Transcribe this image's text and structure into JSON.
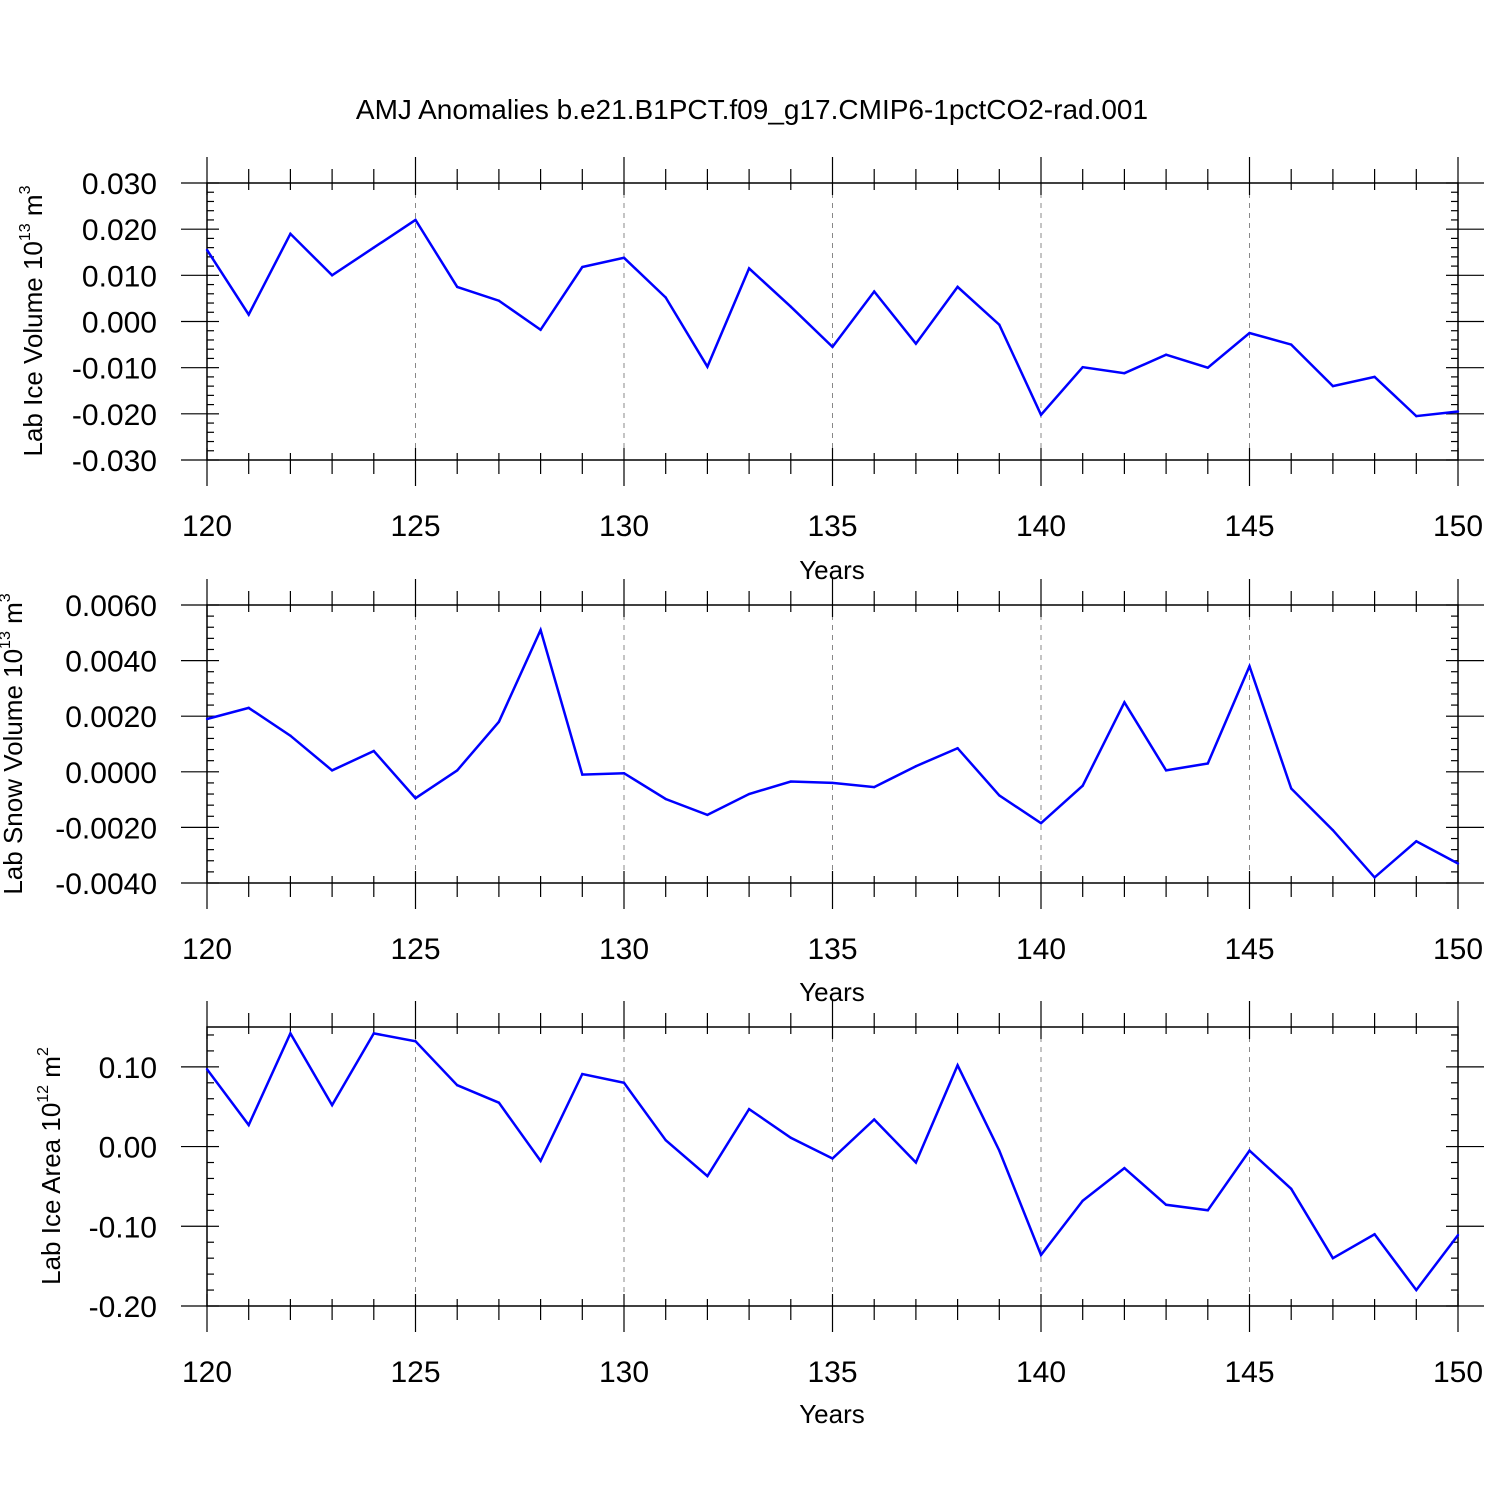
{
  "title": "AMJ Anomalies b.e21.B1PCT.f09_g17.CMIP6-1pctCO2-rad.001",
  "line_color": "#0000ff",
  "chart_data": [
    {
      "type": "line",
      "xlabel": "Years",
      "ylabel": {
        "text": "Lab Ice Volume 10",
        "exp": "13",
        "unit": " m",
        "unit_exp": "3"
      },
      "xlim": [
        120,
        150
      ],
      "ylim": [
        -0.03,
        0.03
      ],
      "x_ticks": [
        "120",
        "125",
        "130",
        "135",
        "140",
        "145",
        "150"
      ],
      "y_ticks": [
        {
          "v": 0.03,
          "label": "0.030"
        },
        {
          "v": 0.02,
          "label": "0.020"
        },
        {
          "v": 0.01,
          "label": "0.010"
        },
        {
          "v": 0.0,
          "label": "0.000"
        },
        {
          "v": -0.01,
          "label": "-0.010"
        },
        {
          "v": -0.02,
          "label": "-0.020"
        },
        {
          "v": -0.03,
          "label": "-0.030"
        }
      ],
      "x": [
        120,
        121,
        122,
        123,
        124,
        125,
        126,
        127,
        128,
        129,
        130,
        131,
        132,
        133,
        134,
        135,
        136,
        137,
        138,
        139,
        140,
        141,
        142,
        143,
        144,
        145,
        146,
        147,
        148,
        149,
        150
      ],
      "y": [
        0.0155,
        0.0015,
        0.019,
        0.01,
        0.016,
        0.022,
        0.0075,
        0.0045,
        -0.0018,
        0.0118,
        0.0138,
        0.0052,
        -0.0098,
        0.0115,
        0.0032,
        -0.0055,
        0.0065,
        -0.0048,
        0.0075,
        -0.0007,
        -0.0202,
        -0.0099,
        -0.0112,
        -0.0072,
        -0.01,
        -0.0025,
        -0.005,
        -0.014,
        -0.012,
        -0.0205,
        -0.0195
      ]
    },
    {
      "type": "line",
      "xlabel": "Years",
      "ylabel": {
        "text": "Lab Snow Volume 10",
        "exp": "13",
        "unit": " m",
        "unit_exp": "3"
      },
      "xlim": [
        120,
        150
      ],
      "ylim": [
        -0.004,
        0.006
      ],
      "x_ticks": [
        "120",
        "125",
        "130",
        "135",
        "140",
        "145",
        "150"
      ],
      "y_ticks": [
        {
          "v": 0.006,
          "label": "0.0060"
        },
        {
          "v": 0.004,
          "label": "0.0040"
        },
        {
          "v": 0.002,
          "label": "0.0020"
        },
        {
          "v": 0.0,
          "label": "0.0000"
        },
        {
          "v": -0.002,
          "label": "-0.0020"
        },
        {
          "v": -0.004,
          "label": "-0.0040"
        }
      ],
      "x": [
        120,
        121,
        122,
        123,
        124,
        125,
        126,
        127,
        128,
        129,
        130,
        131,
        132,
        133,
        134,
        135,
        136,
        137,
        138,
        139,
        140,
        141,
        142,
        143,
        144,
        145,
        146,
        147,
        148,
        149,
        150
      ],
      "y": [
        0.0019,
        0.0023,
        0.0013,
        5e-05,
        0.00075,
        -0.00095,
        5e-05,
        0.0018,
        0.0051,
        -0.0001,
        -5e-05,
        -0.00098,
        -0.00155,
        -0.0008,
        -0.00035,
        -0.0004,
        -0.00055,
        0.0002,
        0.00085,
        -0.00085,
        -0.00185,
        -0.0005,
        0.0025,
        5e-05,
        0.0003,
        0.0038,
        -0.0006,
        -0.0021,
        -0.0038,
        -0.0025,
        -0.0033
      ]
    },
    {
      "type": "line",
      "xlabel": "Years",
      "ylabel": {
        "text": "Lab Ice Area 10",
        "exp": "12",
        "unit": " m",
        "unit_exp": "2"
      },
      "xlim": [
        120,
        150
      ],
      "ylim": [
        -0.2,
        0.15
      ],
      "x_ticks": [
        "120",
        "125",
        "130",
        "135",
        "140",
        "145",
        "150"
      ],
      "y_ticks": [
        {
          "v": 0.1,
          "label": "0.10"
        },
        {
          "v": 0.0,
          "label": "0.00"
        },
        {
          "v": -0.1,
          "label": "-0.10"
        },
        {
          "v": -0.2,
          "label": "-0.20"
        }
      ],
      "x": [
        120,
        121,
        122,
        123,
        124,
        125,
        126,
        127,
        128,
        129,
        130,
        131,
        132,
        133,
        134,
        135,
        136,
        137,
        138,
        139,
        140,
        141,
        142,
        143,
        144,
        145,
        146,
        147,
        148,
        149,
        150
      ],
      "y": [
        0.097,
        0.027,
        0.142,
        0.052,
        0.142,
        0.132,
        0.077,
        0.055,
        -0.018,
        0.091,
        0.08,
        0.008,
        -0.037,
        0.047,
        0.011,
        -0.015,
        0.034,
        -0.02,
        0.102,
        -0.005,
        -0.136,
        -0.068,
        -0.027,
        -0.073,
        -0.08,
        -0.005,
        -0.053,
        -0.14,
        -0.11,
        -0.18,
        -0.111
      ]
    }
  ]
}
